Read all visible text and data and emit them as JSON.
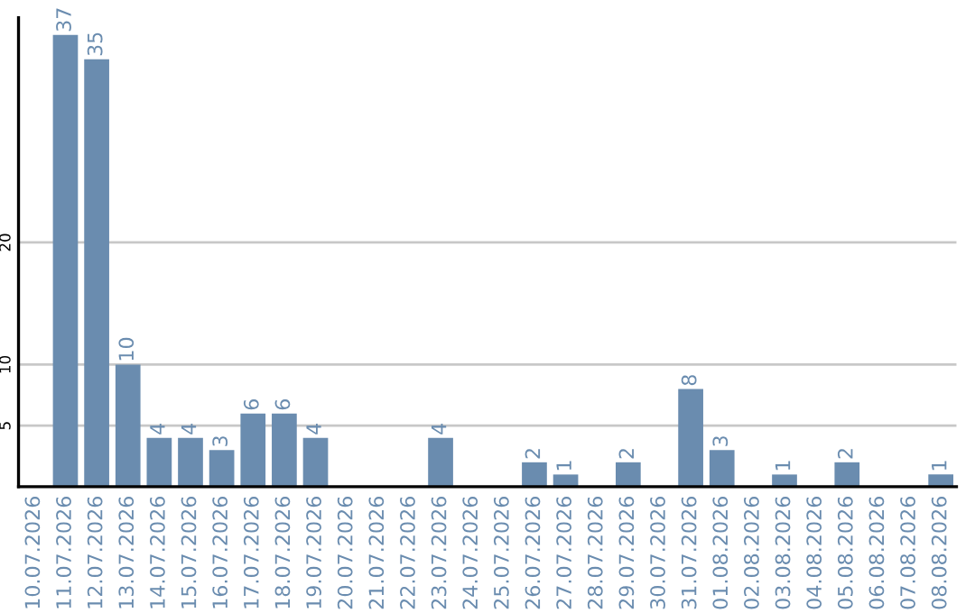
{
  "chart_data": {
    "type": "bar",
    "categories": [
      "10.07.2026",
      "11.07.2026",
      "12.07.2026",
      "13.07.2026",
      "14.07.2026",
      "15.07.2026",
      "16.07.2026",
      "17.07.2026",
      "18.07.2026",
      "19.07.2026",
      "20.07.2026",
      "21.07.2026",
      "22.07.2026",
      "23.07.2026",
      "24.07.2026",
      "25.07.2026",
      "26.07.2026",
      "27.07.2026",
      "28.07.2026",
      "29.07.2026",
      "30.07.2026",
      "31.07.2026",
      "01.08.2026",
      "02.08.2026",
      "03.08.2026",
      "04.08.2026",
      "05.08.2026",
      "06.08.2026",
      "07.08.2026",
      "08.08.2026"
    ],
    "values": [
      0,
      37,
      35,
      10,
      4,
      4,
      3,
      6,
      6,
      4,
      0,
      0,
      0,
      4,
      0,
      0,
      2,
      1,
      0,
      2,
      0,
      8,
      3,
      0,
      1,
      0,
      2,
      0,
      0,
      1
    ],
    "value_labels": [
      null,
      "37",
      "35",
      "10",
      "4",
      "4",
      "3",
      "6",
      "6",
      "4",
      null,
      null,
      null,
      "4",
      null,
      null,
      "2",
      "1",
      null,
      "2",
      null,
      "8",
      "3",
      null,
      "1",
      null,
      "2",
      null,
      null,
      "1"
    ],
    "color": "#6a8caf",
    "ylim": [
      0,
      38.4
    ],
    "yticks": [
      5,
      10,
      20
    ],
    "grid": "y",
    "legend": false
  }
}
